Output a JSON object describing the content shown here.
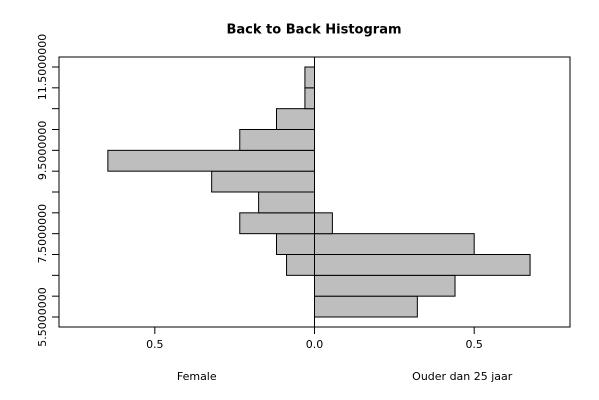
{
  "chart_data": {
    "type": "back-to-back-histogram",
    "title": "Back to Back Histogram",
    "bins": [
      5.5,
      6,
      6.5,
      7,
      7.5,
      8,
      8.5,
      9,
      9.5,
      10,
      10.5,
      11,
      11.5
    ],
    "series": [
      {
        "name": "Female",
        "side": "left",
        "color": "#bebebe",
        "values": [
          0,
          0,
          0.0875,
          0.119,
          0.234,
          0.175,
          0.322,
          0.647,
          0.234,
          0.119,
          0.03,
          0.03
        ]
      },
      {
        "name": "Ouder dan 25 jaar",
        "side": "right",
        "color": "#bebebe",
        "values": [
          0.322,
          0.44,
          0.675,
          0.5,
          0.056,
          0,
          0,
          0,
          0,
          0,
          0,
          0
        ]
      }
    ],
    "xlim": [
      -0.8,
      0.8
    ],
    "xticks": [
      {
        "value": -0.5,
        "label": "0.5"
      },
      {
        "value": 0,
        "label": "0.0"
      },
      0.5
    ],
    "ylim": [
      5.26,
      11.74
    ],
    "yticks": [
      {
        "value": 5.5,
        "label": "5.5000000"
      },
      {
        "value": 7.5,
        "label": "7.5000000"
      },
      {
        "value": 9.5,
        "label": "9.5000000"
      },
      {
        "value": 11.5,
        "label": "11.5000000"
      }
    ],
    "yminor_ticks": [
      6,
      6.5,
      7,
      8,
      8.5,
      9,
      10,
      10.5,
      11
    ]
  }
}
